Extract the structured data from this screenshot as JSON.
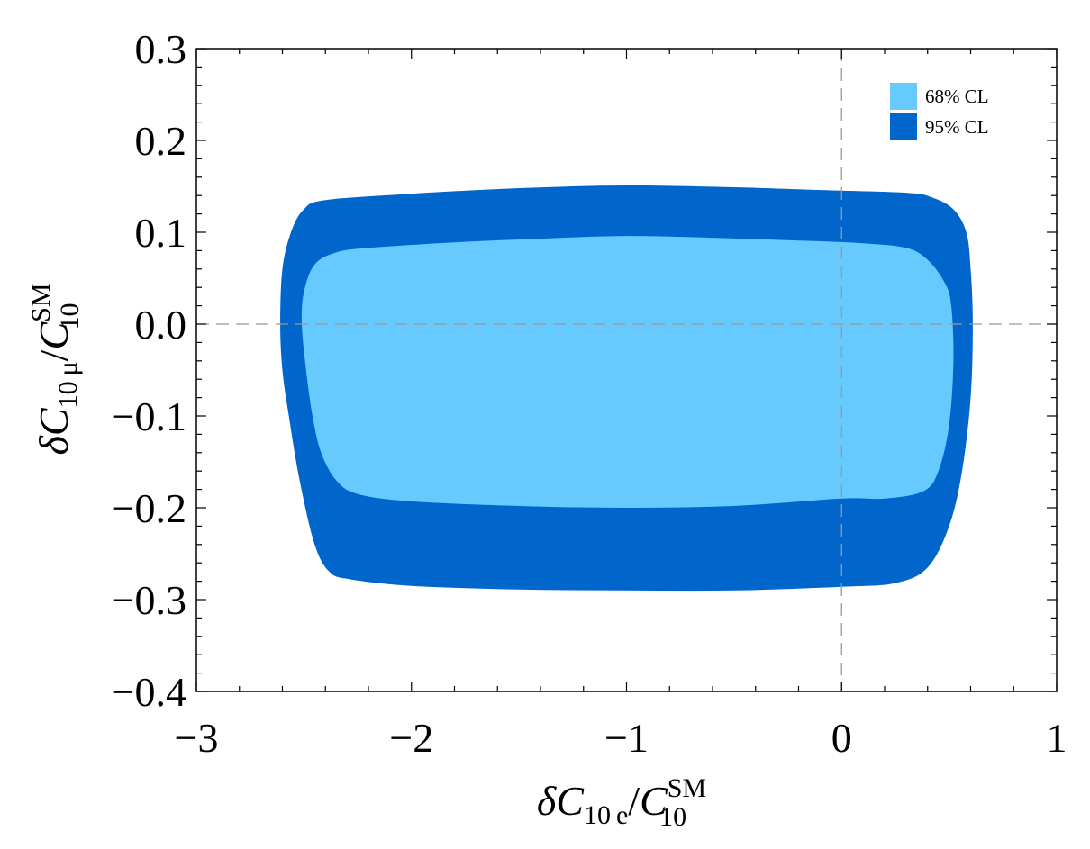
{
  "chart_data": {
    "type": "area",
    "xlim": [
      -3,
      1
    ],
    "ylim": [
      -0.4,
      0.3
    ],
    "x_ticks": [
      {
        "value": -3,
        "label": "−3"
      },
      {
        "value": -2,
        "label": "−2"
      },
      {
        "value": -1,
        "label": "−1"
      },
      {
        "value": 0,
        "label": "0"
      },
      {
        "value": 1,
        "label": "1"
      }
    ],
    "y_ticks": [
      {
        "value": 0.3,
        "label": "0.3"
      },
      {
        "value": 0.2,
        "label": "0.2"
      },
      {
        "value": 0.1,
        "label": "0.1"
      },
      {
        "value": 0.0,
        "label": "0.0"
      },
      {
        "value": -0.1,
        "label": "−0.1"
      },
      {
        "value": -0.2,
        "label": "−0.2"
      },
      {
        "value": -0.3,
        "label": "−0.3"
      },
      {
        "value": -0.4,
        "label": "−0.4"
      }
    ],
    "xlabel": {
      "delta": "δ",
      "c": "C",
      "sub": "10 e",
      "slash": "/",
      "c2": "C",
      "sup2": "SM",
      "sub2": "10"
    },
    "ylabel": {
      "delta": "δ",
      "c": "C",
      "sub": "10 μ",
      "slash": "/",
      "c2": "C",
      "sup2": "SM",
      "sub2": "10"
    },
    "reference_lines": {
      "x": 0,
      "y": 0,
      "style": "dashed",
      "color": "#999999"
    },
    "legend": {
      "position": "top-right",
      "entries": [
        {
          "label": "68% CL",
          "color": "#66CAFF"
        },
        {
          "label": "95% CL",
          "color": "#0066CC"
        }
      ]
    },
    "series": [
      {
        "name": "95% CL",
        "color": "#0066CC",
        "points": [
          [
            -2.61,
            0.0
          ],
          [
            -2.6,
            0.06
          ],
          [
            -2.56,
            0.1
          ],
          [
            -2.5,
            0.125
          ],
          [
            -2.4,
            0.135
          ],
          [
            -2.0,
            0.142
          ],
          [
            -1.5,
            0.148
          ],
          [
            -1.0,
            0.151
          ],
          [
            -0.5,
            0.149
          ],
          [
            -0.1,
            0.146
          ],
          [
            0.3,
            0.143
          ],
          [
            0.42,
            0.138
          ],
          [
            0.52,
            0.125
          ],
          [
            0.58,
            0.1
          ],
          [
            0.6,
            0.06
          ],
          [
            0.61,
            0.0
          ],
          [
            0.6,
            -0.08
          ],
          [
            0.56,
            -0.16
          ],
          [
            0.5,
            -0.22
          ],
          [
            0.4,
            -0.265
          ],
          [
            0.25,
            -0.282
          ],
          [
            0.0,
            -0.286
          ],
          [
            -0.5,
            -0.29
          ],
          [
            -1.0,
            -0.29
          ],
          [
            -1.5,
            -0.289
          ],
          [
            -2.0,
            -0.285
          ],
          [
            -2.28,
            -0.278
          ],
          [
            -2.38,
            -0.27
          ],
          [
            -2.45,
            -0.24
          ],
          [
            -2.52,
            -0.17
          ],
          [
            -2.57,
            -0.1
          ],
          [
            -2.6,
            -0.05
          ]
        ]
      },
      {
        "name": "68% CL",
        "color": "#66CAFF",
        "points": [
          [
            -2.51,
            0.0
          ],
          [
            -2.5,
            0.035
          ],
          [
            -2.45,
            0.065
          ],
          [
            -2.35,
            0.078
          ],
          [
            -2.2,
            0.083
          ],
          [
            -1.8,
            0.089
          ],
          [
            -1.4,
            0.093
          ],
          [
            -1.0,
            0.096
          ],
          [
            -0.6,
            0.094
          ],
          [
            -0.2,
            0.091
          ],
          [
            0.1,
            0.088
          ],
          [
            0.3,
            0.083
          ],
          [
            0.4,
            0.07
          ],
          [
            0.48,
            0.045
          ],
          [
            0.51,
            0.02
          ],
          [
            0.52,
            -0.04
          ],
          [
            0.5,
            -0.11
          ],
          [
            0.45,
            -0.16
          ],
          [
            0.38,
            -0.182
          ],
          [
            0.2,
            -0.19
          ],
          [
            0.0,
            -0.19
          ],
          [
            -0.5,
            -0.198
          ],
          [
            -1.0,
            -0.2
          ],
          [
            -1.5,
            -0.198
          ],
          [
            -2.0,
            -0.193
          ],
          [
            -2.25,
            -0.185
          ],
          [
            -2.35,
            -0.17
          ],
          [
            -2.42,
            -0.14
          ],
          [
            -2.46,
            -0.1
          ],
          [
            -2.49,
            -0.05
          ]
        ]
      }
    ]
  }
}
